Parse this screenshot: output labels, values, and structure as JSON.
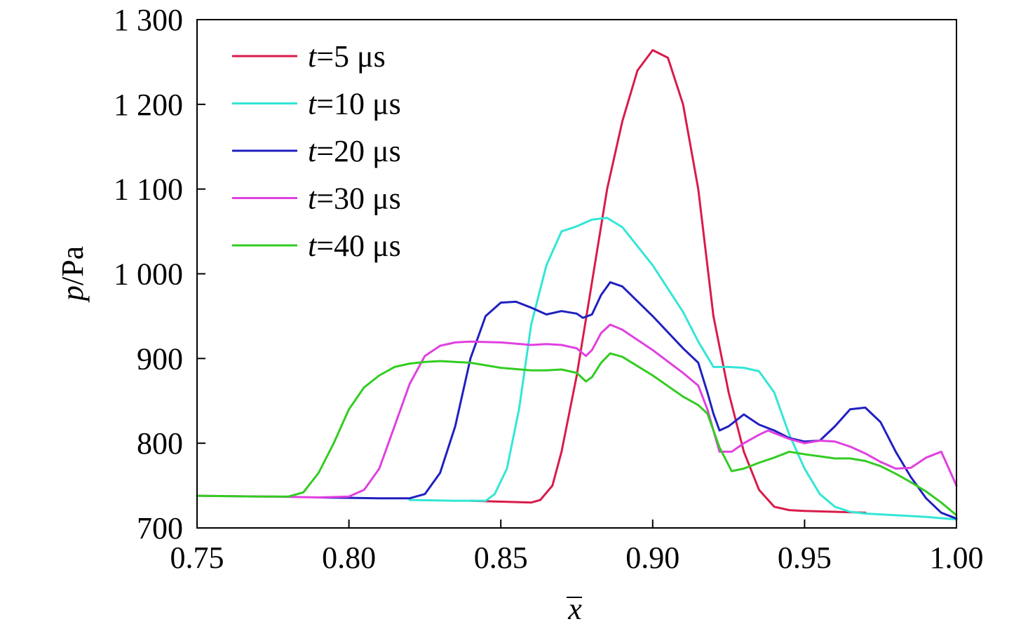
{
  "chart_data": {
    "type": "line",
    "xlim": [
      0.75,
      1.0
    ],
    "ylim": [
      700,
      1300
    ],
    "xticks": [
      0.75,
      0.8,
      0.85,
      0.9,
      0.95,
      1.0
    ],
    "xtick_labels": [
      "0.75",
      "0.80",
      "0.85",
      "0.90",
      "0.95",
      "1.00"
    ],
    "yticks": [
      700,
      800,
      900,
      1000,
      1100,
      1200,
      1300
    ],
    "ytick_labels": [
      "700",
      "800",
      "900",
      "1 000",
      "1 100",
      "1 200",
      "1 300"
    ],
    "xlabel": "x̄",
    "ylabel": {
      "italic": "p",
      "rest": "/Pa"
    },
    "grid": false,
    "legend_position": "top-left",
    "series": [
      {
        "name": "t=5 μs",
        "label_italic": "t",
        "label_rest": "=5 μs",
        "color": "#d81b4a",
        "x": [
          0.84,
          0.85,
          0.86,
          0.863,
          0.867,
          0.87,
          0.875,
          0.88,
          0.885,
          0.89,
          0.895,
          0.9,
          0.905,
          0.91,
          0.915,
          0.92,
          0.925,
          0.93,
          0.935,
          0.94,
          0.945,
          0.95,
          0.96,
          0.97
        ],
        "y": [
          732,
          731,
          730,
          733,
          750,
          790,
          880,
          990,
          1100,
          1180,
          1240,
          1264,
          1255,
          1200,
          1100,
          950,
          860,
          790,
          745,
          725,
          721,
          720,
          719,
          718
        ]
      },
      {
        "name": "t=10 μs",
        "label_italic": "t",
        "label_rest": "=10 μs",
        "color": "#33e6d6",
        "x": [
          0.82,
          0.835,
          0.845,
          0.848,
          0.852,
          0.856,
          0.86,
          0.865,
          0.87,
          0.875,
          0.88,
          0.885,
          0.89,
          0.9,
          0.91,
          0.915,
          0.92,
          0.925,
          0.93,
          0.935,
          0.94,
          0.945,
          0.95,
          0.955,
          0.96,
          0.965,
          0.97,
          0.98,
          0.99,
          1.0
        ],
        "y": [
          733,
          732,
          732,
          740,
          770,
          840,
          940,
          1010,
          1050,
          1056,
          1064,
          1066,
          1055,
          1010,
          955,
          920,
          890,
          890,
          889,
          885,
          860,
          810,
          770,
          740,
          725,
          719,
          717,
          715,
          713,
          710
        ]
      },
      {
        "name": "t=20 μs",
        "label_italic": "t",
        "label_rest": "=20 μs",
        "color": "#2020c0",
        "x": [
          0.79,
          0.81,
          0.82,
          0.825,
          0.83,
          0.835,
          0.84,
          0.845,
          0.85,
          0.855,
          0.86,
          0.865,
          0.87,
          0.875,
          0.877,
          0.88,
          0.883,
          0.886,
          0.89,
          0.9,
          0.91,
          0.915,
          0.918,
          0.92,
          0.922,
          0.925,
          0.93,
          0.935,
          0.94,
          0.945,
          0.95,
          0.955,
          0.96,
          0.965,
          0.97,
          0.975,
          0.98,
          0.985,
          0.99,
          0.995,
          1.0
        ],
        "y": [
          736,
          735,
          735,
          740,
          765,
          820,
          900,
          950,
          966,
          967,
          960,
          952,
          956,
          953,
          948,
          952,
          975,
          990,
          985,
          950,
          912,
          895,
          860,
          835,
          815,
          820,
          834,
          822,
          815,
          806,
          802,
          803,
          820,
          840,
          842,
          825,
          790,
          760,
          735,
          718,
          711
        ]
      },
      {
        "name": "t=30 μs",
        "label_italic": "t",
        "label_rest": "=30 μs",
        "color": "#e040e0",
        "x": [
          0.75,
          0.775,
          0.79,
          0.8,
          0.805,
          0.81,
          0.815,
          0.82,
          0.825,
          0.83,
          0.835,
          0.84,
          0.85,
          0.86,
          0.865,
          0.87,
          0.875,
          0.878,
          0.88,
          0.883,
          0.886,
          0.89,
          0.9,
          0.91,
          0.915,
          0.918,
          0.922,
          0.926,
          0.93,
          0.935,
          0.938,
          0.94,
          0.945,
          0.95,
          0.955,
          0.96,
          0.965,
          0.97,
          0.975,
          0.98,
          0.985,
          0.99,
          0.995,
          1.0
        ],
        "y": [
          738,
          737,
          736,
          737,
          745,
          770,
          820,
          870,
          903,
          915,
          919,
          920,
          919,
          916,
          917,
          916,
          912,
          903,
          910,
          930,
          940,
          934,
          910,
          883,
          868,
          840,
          790,
          790,
          800,
          810,
          815,
          812,
          805,
          800,
          803,
          802,
          796,
          788,
          778,
          770,
          771,
          783,
          790,
          750
        ]
      },
      {
        "name": "t=40 μs",
        "label_italic": "t",
        "label_rest": "=40 μs",
        "color": "#33cc22",
        "x": [
          0.75,
          0.77,
          0.78,
          0.785,
          0.79,
          0.795,
          0.8,
          0.805,
          0.81,
          0.815,
          0.82,
          0.825,
          0.83,
          0.835,
          0.84,
          0.85,
          0.86,
          0.865,
          0.87,
          0.875,
          0.878,
          0.88,
          0.883,
          0.886,
          0.89,
          0.9,
          0.91,
          0.915,
          0.918,
          0.922,
          0.926,
          0.93,
          0.935,
          0.94,
          0.945,
          0.95,
          0.96,
          0.965,
          0.97,
          0.975,
          0.98,
          0.985,
          0.99,
          0.995,
          1.0
        ],
        "y": [
          738,
          737,
          737,
          742,
          765,
          800,
          840,
          866,
          880,
          890,
          894,
          896,
          897,
          896,
          895,
          889,
          886,
          886,
          887,
          883,
          873,
          878,
          895,
          906,
          902,
          880,
          855,
          845,
          835,
          795,
          767,
          770,
          777,
          783,
          790,
          787,
          782,
          782,
          779,
          773,
          764,
          754,
          743,
          730,
          715
        ]
      }
    ]
  }
}
